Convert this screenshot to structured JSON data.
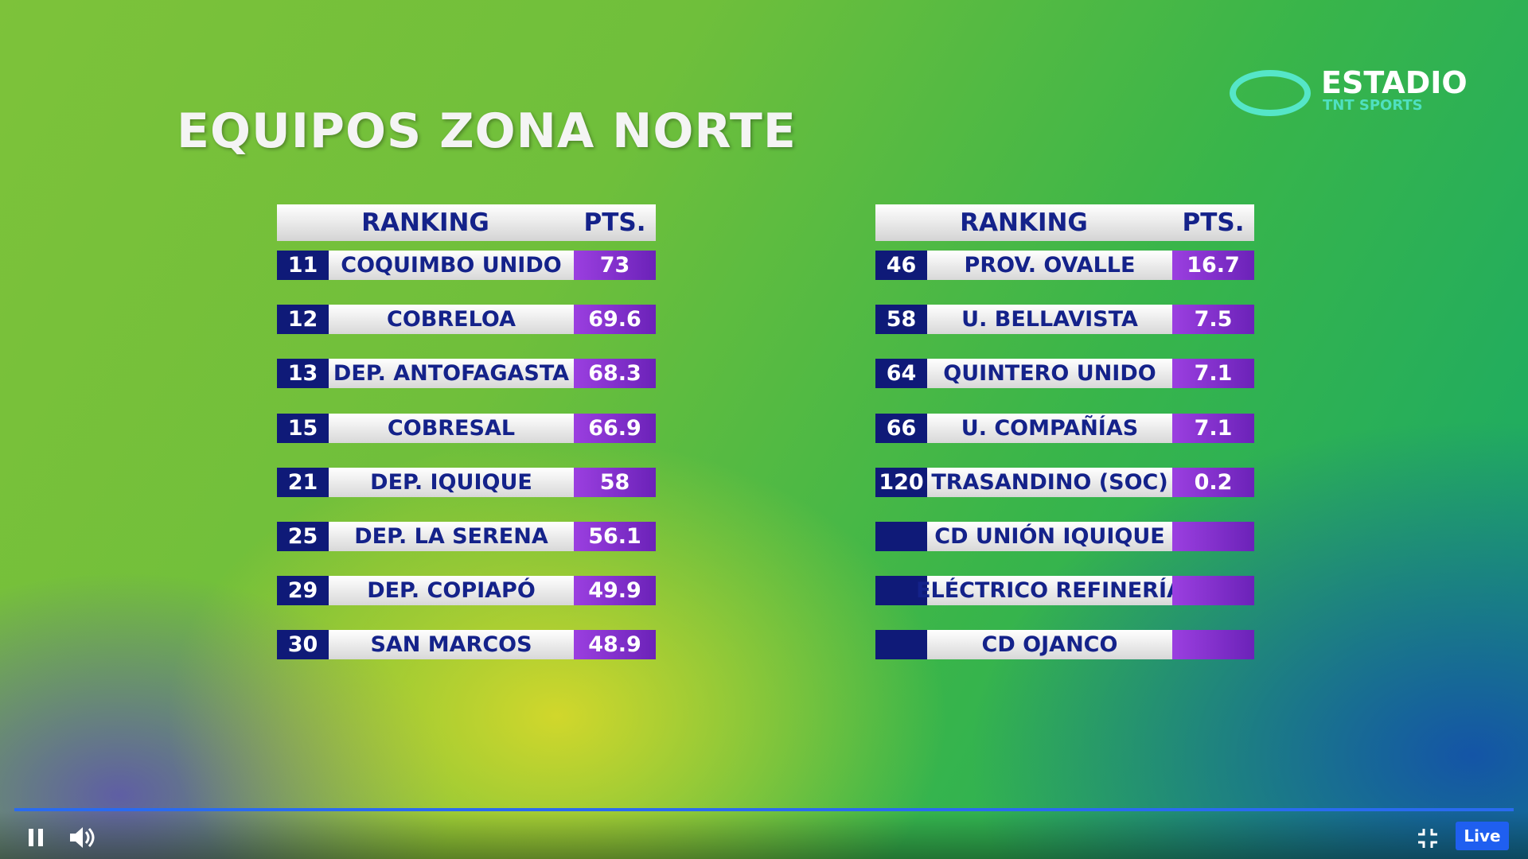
{
  "header": {
    "title": "EQUIPOS ZONA NORTE"
  },
  "logo": {
    "name": "ESTADIO",
    "sub": "TNT SPORTS"
  },
  "tables": [
    {
      "headers": [
        "RANKING",
        "PTS."
      ],
      "rows": [
        {
          "rank": 11,
          "team": "COQUIMBO UNIDO",
          "pts": 73
        },
        {
          "rank": 12,
          "team": "COBRELOA",
          "pts": 69.6
        },
        {
          "rank": 13,
          "team": "DEP. ANTOFAGASTA",
          "pts": 68.3
        },
        {
          "rank": 15,
          "team": "COBRESAL",
          "pts": 66.9
        },
        {
          "rank": 21,
          "team": "DEP. IQUIQUE",
          "pts": 58
        },
        {
          "rank": 25,
          "team": "DEP. LA SERENA",
          "pts": 56.1
        },
        {
          "rank": 29,
          "team": "DEP. COPIAPÓ",
          "pts": 49.9
        },
        {
          "rank": 30,
          "team": "SAN MARCOS",
          "pts": 48.9
        }
      ]
    },
    {
      "headers": [
        "RANKING",
        "PTS."
      ],
      "rows": [
        {
          "rank": 46,
          "team": "PROV. OVALLE",
          "pts": 16.7
        },
        {
          "rank": 58,
          "team": "U. BELLAVISTA",
          "pts": 7.5
        },
        {
          "rank": 64,
          "team": "QUINTERO UNIDO",
          "pts": 7.1
        },
        {
          "rank": 66,
          "team": "U. COMPAÑÍAS",
          "pts": 7.1
        },
        {
          "rank": 120,
          "team": "TRASANDINO (SOC)",
          "pts": 0.2
        },
        {
          "team": "CD UNIÓN IQUIQUE"
        },
        {
          "team": "ELÉCTRICO REFINERÍA"
        },
        {
          "team": "CD OJANCO"
        }
      ]
    }
  ],
  "player": {
    "live": "Live"
  }
}
